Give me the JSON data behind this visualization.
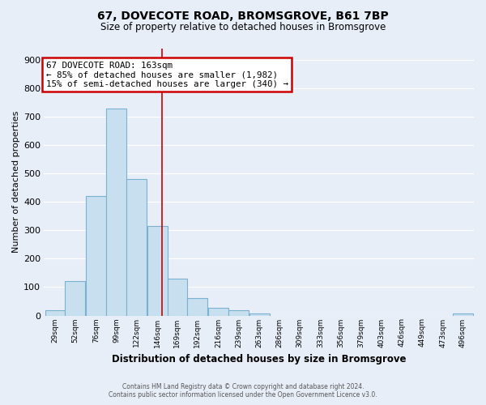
{
  "title": "67, DOVECOTE ROAD, BROMSGROVE, B61 7BP",
  "subtitle": "Size of property relative to detached houses in Bromsgrove",
  "xlabel": "Distribution of detached houses by size in Bromsgrove",
  "ylabel": "Number of detached properties",
  "bar_color": "#c8dff0",
  "bar_edge_color": "#7ab0d0",
  "background_color": "#e8eef8",
  "grid_color": "white",
  "bin_labels": [
    "29sqm",
    "52sqm",
    "76sqm",
    "99sqm",
    "122sqm",
    "146sqm",
    "169sqm",
    "192sqm",
    "216sqm",
    "239sqm",
    "263sqm",
    "286sqm",
    "309sqm",
    "333sqm",
    "356sqm",
    "379sqm",
    "403sqm",
    "426sqm",
    "449sqm",
    "473sqm",
    "496sqm"
  ],
  "bin_edges": [
    29,
    52,
    76,
    99,
    122,
    146,
    169,
    192,
    216,
    239,
    263,
    286,
    309,
    333,
    356,
    379,
    403,
    426,
    449,
    473,
    496
  ],
  "bar_heights": [
    20,
    120,
    420,
    730,
    480,
    315,
    130,
    62,
    28,
    18,
    8,
    0,
    0,
    0,
    0,
    0,
    0,
    0,
    0,
    0,
    8
  ],
  "vline_x": 163,
  "vline_color": "#cc0000",
  "annotation_title": "67 DOVECOTE ROAD: 163sqm",
  "annotation_line1": "← 85% of detached houses are smaller (1,982)",
  "annotation_line2": "15% of semi-detached houses are larger (340) →",
  "annotation_box_color": "white",
  "annotation_box_edge": "#cc0000",
  "ylim": [
    0,
    940
  ],
  "yticks": [
    0,
    100,
    200,
    300,
    400,
    500,
    600,
    700,
    800,
    900
  ],
  "footer1": "Contains HM Land Registry data © Crown copyright and database right 2024.",
  "footer2": "Contains public sector information licensed under the Open Government Licence v3.0."
}
